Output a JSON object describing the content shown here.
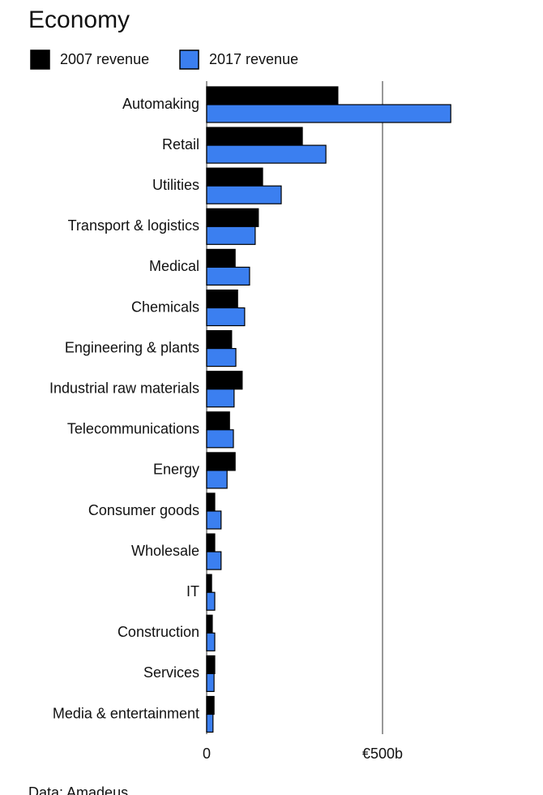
{
  "chart_data": {
    "type": "hbar",
    "title": "Economy",
    "source": "Data: Amadeus",
    "categories": [
      "Automaking",
      "Retail",
      "Utilities",
      "Transport & logistics",
      "Medical",
      "Chemicals",
      "Engineering & plants",
      "Industrial raw materials",
      "Telecommunications",
      "Energy",
      "Consumer goods",
      "Wholesale",
      "IT",
      "Construction",
      "Services",
      "Media & entertainment"
    ],
    "series": [
      {
        "name": "2007 revenue",
        "color": "#000000",
        "values": [
          373,
          272,
          159,
          147,
          81,
          88,
          71,
          101,
          65,
          81,
          23,
          23,
          14,
          16,
          23,
          21
        ]
      },
      {
        "name": "2017 revenue",
        "color": "#3b7ff0",
        "values": [
          694,
          339,
          212,
          138,
          122,
          108,
          83,
          78,
          76,
          58,
          41,
          41,
          23,
          23,
          21,
          18
        ]
      }
    ],
    "xlim": [
      0,
      700
    ],
    "xticks": [
      0,
      {
        "value": 500,
        "label": "€500b"
      }
    ],
    "grid": true
  }
}
